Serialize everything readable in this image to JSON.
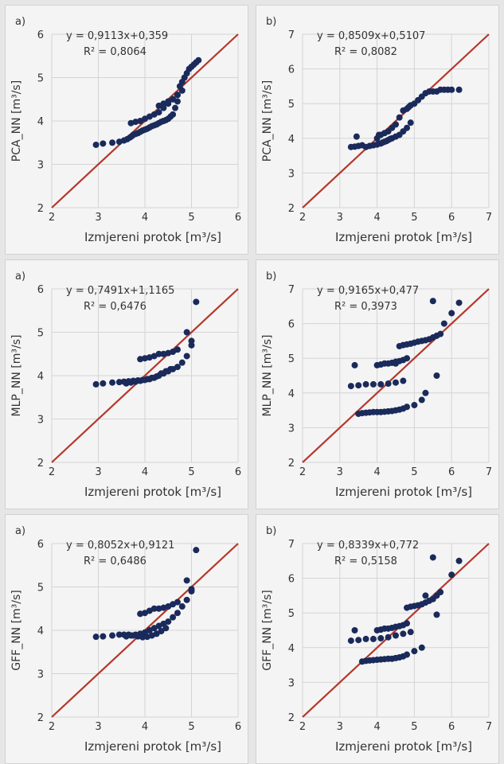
{
  "colors": {
    "points": "#1a2a5a",
    "line": "#b5372a",
    "grid": "#d4d4d4",
    "background": "#f4f4f4"
  },
  "chart_data": [
    {
      "type": "scatter",
      "panel_label": "a)",
      "xlabel": "Izmjereni protok [m³/s]",
      "ylabel": "PCA_NN [m³/s]",
      "xlim": [
        2,
        6
      ],
      "ylim": [
        2,
        6
      ],
      "xticks": [
        2,
        3,
        4,
        5,
        6
      ],
      "yticks": [
        2,
        3,
        4,
        5,
        6
      ],
      "equation": "y = 0,9113x+0,359",
      "r2": "R² = 0,8064",
      "reference_line": "1:1",
      "x": [
        2.95,
        3.1,
        3.3,
        3.45,
        3.55,
        3.62,
        3.68,
        3.72,
        3.75,
        3.8,
        3.85,
        3.9,
        3.95,
        4.0,
        4.05,
        4.1,
        4.15,
        4.2,
        4.25,
        4.3,
        4.35,
        4.4,
        4.45,
        4.5,
        4.55,
        4.6,
        4.65,
        4.7,
        3.7,
        3.8,
        3.9,
        4.0,
        4.1,
        4.2,
        4.3,
        4.4,
        4.5,
        4.6,
        4.7,
        4.75,
        4.8,
        4.85,
        4.9,
        4.95,
        5.0,
        5.05,
        5.1,
        5.15,
        4.3,
        4.4,
        4.5,
        4.6,
        4.7,
        4.8
      ],
      "y": [
        3.45,
        3.48,
        3.5,
        3.52,
        3.55,
        3.58,
        3.62,
        3.65,
        3.68,
        3.7,
        3.72,
        3.75,
        3.78,
        3.8,
        3.82,
        3.85,
        3.88,
        3.9,
        3.92,
        3.95,
        3.98,
        4.0,
        4.02,
        4.05,
        4.1,
        4.15,
        4.3,
        4.45,
        3.95,
        3.98,
        4.0,
        4.05,
        4.1,
        4.15,
        4.2,
        4.3,
        4.4,
        4.5,
        4.6,
        4.8,
        4.9,
        5.0,
        5.1,
        5.2,
        5.25,
        5.3,
        5.35,
        5.4,
        4.35,
        4.4,
        4.45,
        4.5,
        4.6,
        4.7
      ]
    },
    {
      "type": "scatter",
      "panel_label": "b)",
      "xlabel": "Izmjereni protok [m³/s]",
      "ylabel": "PCA_NN [m³/s]",
      "xlim": [
        2,
        7
      ],
      "ylim": [
        2,
        7
      ],
      "xticks": [
        2,
        3,
        4,
        5,
        6,
        7
      ],
      "yticks": [
        2,
        3,
        4,
        5,
        6,
        7
      ],
      "equation": "y = 0,8509x+0,5107",
      "r2": "R² = 0,8082",
      "reference_line": "1:1",
      "x": [
        3.3,
        3.4,
        3.5,
        3.6,
        3.7,
        3.8,
        3.9,
        4.0,
        4.05,
        4.1,
        4.15,
        4.2,
        4.25,
        4.3,
        4.35,
        4.4,
        4.5,
        4.6,
        4.7,
        4.8,
        4.9,
        4.0,
        4.1,
        4.2,
        4.3,
        4.4,
        4.5,
        4.6,
        4.7,
        4.8,
        4.85,
        4.9,
        5.0,
        5.1,
        5.2,
        5.3,
        5.4,
        5.5,
        5.6,
        5.7,
        5.8,
        5.9,
        6.0,
        6.2,
        3.45,
        4.05
      ],
      "y": [
        3.75,
        3.76,
        3.78,
        3.8,
        3.75,
        3.78,
        3.8,
        3.82,
        3.85,
        3.85,
        3.88,
        3.9,
        3.92,
        3.95,
        3.98,
        4.0,
        4.05,
        4.1,
        4.2,
        4.3,
        4.45,
        4.0,
        4.1,
        4.15,
        4.2,
        4.3,
        4.4,
        4.6,
        4.8,
        4.85,
        4.9,
        4.95,
        5.0,
        5.1,
        5.2,
        5.3,
        5.35,
        5.35,
        5.35,
        5.4,
        5.4,
        5.4,
        5.4,
        5.4,
        4.05,
        4.1
      ]
    },
    {
      "type": "scatter",
      "panel_label": "a)",
      "xlabel": "Izmjereni protok [m³/s]",
      "ylabel": "MLP_NN [m³/s]",
      "xlim": [
        2,
        6
      ],
      "ylim": [
        2,
        6
      ],
      "xticks": [
        2,
        3,
        4,
        5,
        6
      ],
      "yticks": [
        2,
        3,
        4,
        5,
        6
      ],
      "equation": "y = 0,7491x+1,1165",
      "r2": "R² = 0,6476",
      "reference_line": "1:1",
      "x": [
        2.95,
        3.1,
        3.3,
        3.45,
        3.55,
        3.65,
        3.75,
        3.85,
        3.95,
        4.05,
        4.15,
        4.25,
        4.35,
        4.45,
        4.55,
        3.6,
        3.7,
        3.8,
        3.9,
        4.0,
        4.1,
        4.2,
        4.3,
        4.4,
        4.5,
        4.6,
        4.7,
        4.8,
        4.9,
        5.0,
        3.9,
        4.0,
        4.1,
        4.2,
        4.3,
        4.4,
        4.5,
        4.6,
        4.7,
        4.9,
        5.0,
        5.1
      ],
      "y": [
        3.8,
        3.82,
        3.84,
        3.85,
        3.86,
        3.87,
        3.88,
        3.89,
        3.9,
        3.92,
        3.95,
        3.98,
        4.05,
        4.1,
        4.15,
        3.82,
        3.84,
        3.86,
        3.88,
        3.9,
        3.92,
        3.95,
        4.0,
        4.05,
        4.1,
        4.15,
        4.2,
        4.3,
        4.45,
        4.7,
        4.38,
        4.4,
        4.42,
        4.45,
        4.5,
        4.5,
        4.52,
        4.55,
        4.6,
        5.0,
        4.8,
        5.7
      ]
    },
    {
      "type": "scatter",
      "panel_label": "b)",
      "xlabel": "Izmjereni protok [m³/s]",
      "ylabel": "MLP_NN [m³/s]",
      "xlim": [
        2,
        7
      ],
      "ylim": [
        2,
        7
      ],
      "xticks": [
        2,
        3,
        4,
        5,
        6,
        7
      ],
      "yticks": [
        2,
        3,
        4,
        5,
        6,
        7
      ],
      "equation": "y = 0,9165x+0,477",
      "r2": "R² = 0,3973",
      "reference_line": "1:1",
      "x": [
        3.5,
        3.6,
        3.7,
        3.8,
        3.9,
        4.0,
        4.1,
        4.2,
        4.3,
        4.4,
        4.5,
        4.6,
        4.7,
        4.8,
        5.0,
        5.2,
        3.3,
        3.5,
        3.7,
        3.9,
        4.1,
        4.3,
        4.5,
        4.7,
        4.0,
        4.1,
        4.2,
        4.3,
        4.4,
        4.5,
        4.6,
        4.7,
        4.8,
        4.6,
        4.7,
        4.8,
        4.9,
        5.0,
        5.1,
        5.2,
        5.3,
        5.4,
        5.5,
        5.6,
        5.7,
        5.5,
        5.6,
        5.8,
        6.0,
        6.2,
        3.4,
        4.5,
        5.3
      ],
      "y": [
        3.4,
        3.42,
        3.43,
        3.44,
        3.45,
        3.45,
        3.45,
        3.46,
        3.47,
        3.48,
        3.5,
        3.52,
        3.55,
        3.6,
        3.65,
        3.8,
        4.2,
        4.22,
        4.25,
        4.25,
        4.25,
        4.27,
        4.3,
        4.35,
        4.8,
        4.82,
        4.85,
        4.85,
        4.87,
        4.9,
        4.92,
        4.95,
        5.0,
        5.35,
        5.38,
        5.4,
        5.42,
        5.45,
        5.48,
        5.5,
        5.52,
        5.55,
        5.6,
        5.65,
        5.7,
        6.65,
        4.5,
        6.0,
        6.3,
        6.6,
        4.8,
        4.85,
        4.0
      ]
    },
    {
      "type": "scatter",
      "panel_label": "a)",
      "xlabel": "Izmjereni protok [m³/s]",
      "ylabel": "GFF_NN [m³/s]",
      "xlim": [
        2,
        6
      ],
      "ylim": [
        2,
        6
      ],
      "xticks": [
        2,
        3,
        4,
        5,
        6
      ],
      "yticks": [
        2,
        3,
        4,
        5,
        6
      ],
      "equation": "y = 0,8052x+0,9121",
      "r2": "R² = 0,6486",
      "reference_line": "1:1",
      "x": [
        2.95,
        3.1,
        3.3,
        3.45,
        3.55,
        3.65,
        3.75,
        3.85,
        3.95,
        4.05,
        4.15,
        4.25,
        4.35,
        4.45,
        3.6,
        3.7,
        3.8,
        3.9,
        4.0,
        4.1,
        4.2,
        4.3,
        4.4,
        4.5,
        4.6,
        4.7,
        4.8,
        4.9,
        5.0,
        3.9,
        4.0,
        4.1,
        4.2,
        4.3,
        4.4,
        4.5,
        4.6,
        4.7,
        4.9,
        5.0,
        5.1
      ],
      "y": [
        3.85,
        3.86,
        3.88,
        3.9,
        3.9,
        3.9,
        3.88,
        3.86,
        3.84,
        3.85,
        3.88,
        3.92,
        3.98,
        4.05,
        3.86,
        3.88,
        3.9,
        3.92,
        3.95,
        4.0,
        4.05,
        4.1,
        4.15,
        4.2,
        4.3,
        4.4,
        4.55,
        4.7,
        4.95,
        4.38,
        4.4,
        4.45,
        4.5,
        4.5,
        4.52,
        4.55,
        4.6,
        4.65,
        5.15,
        4.9,
        5.85
      ]
    },
    {
      "type": "scatter",
      "panel_label": "b)",
      "xlabel": "Izmjereni protok [m³/s]",
      "ylabel": "GFF_NN [m³/s]",
      "xlim": [
        2,
        7
      ],
      "ylim": [
        2,
        7
      ],
      "xticks": [
        2,
        3,
        4,
        5,
        6,
        7
      ],
      "yticks": [
        2,
        3,
        4,
        5,
        6,
        7
      ],
      "equation": "y = 0,8339x+0,772",
      "r2": "R² = 0,5158",
      "reference_line": "1:1",
      "x": [
        3.6,
        3.7,
        3.8,
        3.9,
        4.0,
        4.1,
        4.2,
        4.3,
        4.4,
        4.5,
        4.6,
        4.7,
        4.8,
        5.0,
        5.2,
        3.3,
        3.5,
        3.7,
        3.9,
        4.1,
        4.3,
        4.5,
        4.7,
        4.9,
        4.0,
        4.1,
        4.2,
        4.3,
        4.4,
        4.5,
        4.6,
        4.7,
        4.8,
        4.8,
        4.9,
        5.0,
        5.1,
        5.2,
        5.3,
        5.4,
        5.5,
        5.6,
        5.7,
        5.5,
        5.6,
        6.0,
        6.2,
        3.4,
        5.3
      ],
      "y": [
        3.6,
        3.62,
        3.63,
        3.64,
        3.65,
        3.66,
        3.67,
        3.68,
        3.68,
        3.7,
        3.72,
        3.75,
        3.8,
        3.9,
        4.0,
        4.2,
        4.22,
        4.25,
        4.25,
        4.27,
        4.3,
        4.35,
        4.4,
        4.45,
        4.5,
        4.52,
        4.55,
        4.55,
        4.57,
        4.6,
        4.62,
        4.65,
        4.7,
        5.15,
        5.18,
        5.2,
        5.22,
        5.25,
        5.3,
        5.35,
        5.4,
        5.5,
        5.6,
        6.6,
        4.95,
        6.1,
        6.5,
        4.5,
        5.5
      ]
    }
  ]
}
